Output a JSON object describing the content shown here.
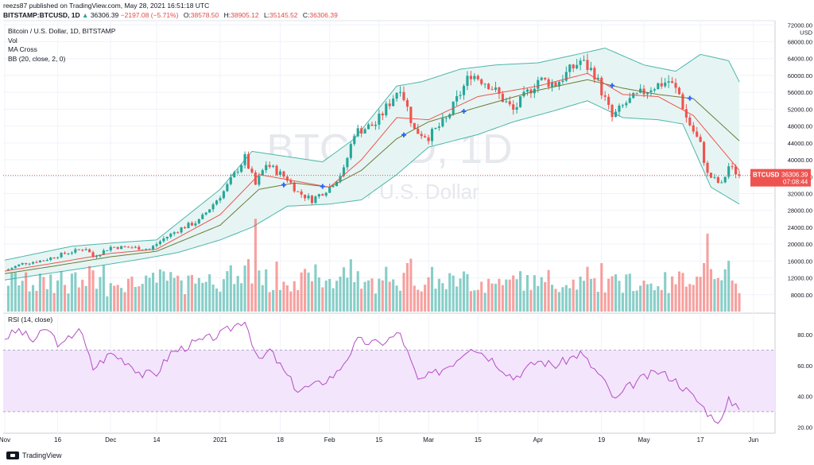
{
  "header": {
    "published": "reezs87 published on TradingView.com, May 28, 2021 16:51:18 UTC",
    "symbol": "BITSTAMP:BTCUSD, 1D",
    "last": "36306.39",
    "change": "−2197.08 (−5.71%)",
    "o_label": "O:",
    "o": "38578.50",
    "h_label": "H:",
    "h": "38905.12",
    "l_label": "L:",
    "l": "35145.52",
    "c_label": "C:",
    "c": "36306.39"
  },
  "legend": {
    "title": "Bitcoin / U.S. Dollar, 1D, BITSTAMP",
    "items": [
      "Vol",
      "MA Cross",
      "BB (20, close, 2, 0)"
    ],
    "rsi": "RSI (14, close)"
  },
  "watermark": {
    "symbol": "BTCUSD, 1D",
    "name": "Bitcoin / U.S. Dollar"
  },
  "price_tag": {
    "symbol": "BTCUSD",
    "price": "36306.39",
    "countdown": "07:08:44"
  },
  "footer": {
    "brand": "TradingView"
  },
  "colors": {
    "up": "#26a69a",
    "down": "#ef5350",
    "bb_fill": "#e6f5f3",
    "bb_line": "#4db6ac",
    "ma_fast": "#ef5350",
    "ma_slow": "#6d7a3a",
    "rsi_line": "#b44ec4",
    "rsi_band": "#f3e5fc",
    "cross": "#2962ff"
  },
  "chart_data": [
    {
      "type": "candlestick",
      "title": "Bitcoin / U.S. Dollar, 1D, BITSTAMP",
      "x_start": "2020-11-01",
      "x_end": "2021-05-28",
      "x_ticks": [
        {
          "label": "Nov",
          "date": "2020-11-01"
        },
        {
          "label": "16",
          "date": "2020-11-16"
        },
        {
          "label": "Dec",
          "date": "2020-12-01"
        },
        {
          "label": "14",
          "date": "2020-12-14"
        },
        {
          "label": "2021",
          "date": "2021-01-01"
        },
        {
          "label": "18",
          "date": "2021-01-18"
        },
        {
          "label": "Feb",
          "date": "2021-02-01"
        },
        {
          "label": "15",
          "date": "2021-02-15"
        },
        {
          "label": "Mar",
          "date": "2021-03-01"
        },
        {
          "label": "15",
          "date": "2021-03-15"
        },
        {
          "label": "Apr",
          "date": "2021-04-01"
        },
        {
          "label": "19",
          "date": "2021-04-19"
        },
        {
          "label": "May",
          "date": "2021-05-01"
        },
        {
          "label": "17",
          "date": "2021-05-17"
        },
        {
          "label": "Jun",
          "date": "2021-06-01"
        }
      ],
      "y_ticks": [
        8000,
        12000,
        16000,
        20000,
        24000,
        28000,
        32000,
        36000,
        40000,
        44000,
        48000,
        52000,
        56000,
        60000,
        64000,
        68000,
        72000
      ],
      "y_tick_labels": [
        "8000.00",
        "12000.00",
        "16000.00",
        "20000.00",
        "24000.00",
        "28000.00",
        "32000.00",
        "36000.00",
        "40000.00",
        "44000.00",
        "48000.00",
        "52000.00",
        "56000.00",
        "60000.00",
        "64000.00",
        "68000.00",
        "72000.00"
      ],
      "y_unit": "USD",
      "ylim": [
        4000,
        73000
      ],
      "last_price": 36306.39,
      "price_path": [
        [
          "2020-11-01",
          13700
        ],
        [
          "2020-11-06",
          15400
        ],
        [
          "2020-11-12",
          16200
        ],
        [
          "2020-11-18",
          17800
        ],
        [
          "2020-11-24",
          19000
        ],
        [
          "2020-11-26",
          17000
        ],
        [
          "2020-12-01",
          19300
        ],
        [
          "2020-12-07",
          19200
        ],
        [
          "2020-12-12",
          18800
        ],
        [
          "2020-12-16",
          21300
        ],
        [
          "2020-12-21",
          23800
        ],
        [
          "2020-12-26",
          25500
        ],
        [
          "2021-01-02",
          32500
        ],
        [
          "2021-01-08",
          40500
        ],
        [
          "2021-01-11",
          34000
        ],
        [
          "2021-01-14",
          39000
        ],
        [
          "2021-01-20",
          35500
        ],
        [
          "2021-01-23",
          32300
        ],
        [
          "2021-01-27",
          30500
        ],
        [
          "2021-02-01",
          33500
        ],
        [
          "2021-02-05",
          37500
        ],
        [
          "2021-02-08",
          46500
        ],
        [
          "2021-02-14",
          48500
        ],
        [
          "2021-02-21",
          57500
        ],
        [
          "2021-02-25",
          47000
        ],
        [
          "2021-03-01",
          45500
        ],
        [
          "2021-03-06",
          49500
        ],
        [
          "2021-03-13",
          60500
        ],
        [
          "2021-03-18",
          58000
        ],
        [
          "2021-03-25",
          51700
        ],
        [
          "2021-04-01",
          59000
        ],
        [
          "2021-04-06",
          58000
        ],
        [
          "2021-04-13",
          63500
        ],
        [
          "2021-04-17",
          60500
        ],
        [
          "2021-04-22",
          50000
        ],
        [
          "2021-04-26",
          53500
        ],
        [
          "2021-05-03",
          57200
        ],
        [
          "2021-05-08",
          58700
        ],
        [
          "2021-05-11",
          55500
        ],
        [
          "2021-05-13",
          50000
        ],
        [
          "2021-05-17",
          43500
        ],
        [
          "2021-05-19",
          36500
        ],
        [
          "2021-05-23",
          34000
        ],
        [
          "2021-05-25",
          38500
        ],
        [
          "2021-05-28",
          36306
        ]
      ],
      "bb_upper": [
        [
          "2020-11-01",
          16200
        ],
        [
          "2020-11-20",
          19500
        ],
        [
          "2020-12-05",
          20500
        ],
        [
          "2020-12-14",
          21000
        ],
        [
          "2021-01-01",
          33000
        ],
        [
          "2021-01-10",
          42000
        ],
        [
          "2021-01-18",
          41000
        ],
        [
          "2021-01-30",
          39500
        ],
        [
          "2021-02-08",
          45000
        ],
        [
          "2021-02-20",
          57500
        ],
        [
          "2021-02-27",
          58500
        ],
        [
          "2021-03-10",
          61500
        ],
        [
          "2021-03-20",
          62500
        ],
        [
          "2021-04-01",
          63000
        ],
        [
          "2021-04-12",
          65000
        ],
        [
          "2021-04-20",
          66500
        ],
        [
          "2021-05-01",
          62500
        ],
        [
          "2021-05-10",
          61000
        ],
        [
          "2021-05-17",
          65000
        ],
        [
          "2021-05-25",
          63500
        ],
        [
          "2021-05-28",
          58500
        ]
      ],
      "bb_lower": [
        [
          "2020-11-01",
          11500
        ],
        [
          "2020-11-25",
          14500
        ],
        [
          "2020-12-10",
          16500
        ],
        [
          "2020-12-20",
          18000
        ],
        [
          "2021-01-01",
          21000
        ],
        [
          "2021-01-10",
          24000
        ],
        [
          "2021-01-20",
          29000
        ],
        [
          "2021-02-01",
          29500
        ],
        [
          "2021-02-10",
          30500
        ],
        [
          "2021-02-20",
          36500
        ],
        [
          "2021-03-01",
          43000
        ],
        [
          "2021-03-15",
          46000
        ],
        [
          "2021-03-25",
          49000
        ],
        [
          "2021-04-05",
          51500
        ],
        [
          "2021-04-15",
          54000
        ],
        [
          "2021-04-25",
          50000
        ],
        [
          "2021-05-05",
          49500
        ],
        [
          "2021-05-12",
          48500
        ],
        [
          "2021-05-20",
          33500
        ],
        [
          "2021-05-28",
          29500
        ]
      ],
      "ma_fast": [
        [
          "2020-11-01",
          13600
        ],
        [
          "2020-11-15",
          15500
        ],
        [
          "2020-12-01",
          17800
        ],
        [
          "2020-12-14",
          18800
        ],
        [
          "2021-01-01",
          27000
        ],
        [
          "2021-01-12",
          36500
        ],
        [
          "2021-01-22",
          35000
        ],
        [
          "2021-02-01",
          33500
        ],
        [
          "2021-02-10",
          40000
        ],
        [
          "2021-02-20",
          50000
        ],
        [
          "2021-03-01",
          49500
        ],
        [
          "2021-03-15",
          55000
        ],
        [
          "2021-04-01",
          57500
        ],
        [
          "2021-04-15",
          60500
        ],
        [
          "2021-04-25",
          55500
        ],
        [
          "2021-05-05",
          55000
        ],
        [
          "2021-05-15",
          50500
        ],
        [
          "2021-05-28",
          37500
        ]
      ],
      "ma_slow": [
        [
          "2020-11-01",
          13000
        ],
        [
          "2020-11-15",
          14800
        ],
        [
          "2020-12-01",
          17000
        ],
        [
          "2020-12-14",
          18300
        ],
        [
          "2021-01-01",
          24500
        ],
        [
          "2021-01-12",
          33000
        ],
        [
          "2021-01-22",
          34500
        ],
        [
          "2021-02-01",
          33500
        ],
        [
          "2021-02-10",
          37500
        ],
        [
          "2021-02-20",
          45000
        ],
        [
          "2021-03-01",
          49000
        ],
        [
          "2021-03-15",
          52500
        ],
        [
          "2021-04-01",
          56500
        ],
        [
          "2021-04-15",
          59000
        ],
        [
          "2021-04-25",
          57000
        ],
        [
          "2021-05-05",
          55500
        ],
        [
          "2021-05-15",
          54500
        ],
        [
          "2021-05-28",
          44500
        ]
      ],
      "cross_markers": [
        "2021-01-19",
        "2021-01-30",
        "2021-02-22",
        "2021-03-11",
        "2021-04-22",
        "2021-05-14"
      ],
      "volume_spikes": [
        [
          "2021-01-11",
          22000
        ],
        [
          "2021-02-23",
          11500
        ],
        [
          "2021-05-19",
          18500
        ]
      ]
    },
    {
      "type": "line",
      "title": "RSI (14, close)",
      "y_ticks": [
        20,
        40,
        60,
        80
      ],
      "y_tick_labels": [
        "20.00",
        "40.00",
        "60.00",
        "80.00"
      ],
      "ylim": [
        16,
        94
      ],
      "band": [
        30,
        70
      ],
      "series": [
        {
          "values": [
            [
              "2020-11-01",
              78
            ],
            [
              "2020-11-05",
              83
            ],
            [
              "2020-11-09",
              76
            ],
            [
              "2020-11-13",
              84
            ],
            [
              "2020-11-17",
              72
            ],
            [
              "2020-11-22",
              85
            ],
            [
              "2020-11-26",
              58
            ],
            [
              "2020-12-01",
              68
            ],
            [
              "2020-12-06",
              62
            ],
            [
              "2020-12-10",
              54
            ],
            [
              "2020-12-14",
              55
            ],
            [
              "2020-12-18",
              68
            ],
            [
              "2020-12-24",
              74
            ],
            [
              "2021-01-01",
              80
            ],
            [
              "2021-01-08",
              90
            ],
            [
              "2021-01-12",
              62
            ],
            [
              "2021-01-15",
              70
            ],
            [
              "2021-01-20",
              53
            ],
            [
              "2021-01-23",
              44
            ],
            [
              "2021-01-29",
              48
            ],
            [
              "2021-02-03",
              55
            ],
            [
              "2021-02-09",
              76
            ],
            [
              "2021-02-15",
              74
            ],
            [
              "2021-02-21",
              81
            ],
            [
              "2021-02-26",
              50
            ],
            [
              "2021-03-03",
              55
            ],
            [
              "2021-03-08",
              62
            ],
            [
              "2021-03-13",
              73
            ],
            [
              "2021-03-19",
              64
            ],
            [
              "2021-03-25",
              52
            ],
            [
              "2021-04-01",
              63
            ],
            [
              "2021-04-06",
              60
            ],
            [
              "2021-04-13",
              68
            ],
            [
              "2021-04-19",
              52
            ],
            [
              "2021-04-23",
              37
            ],
            [
              "2021-04-26",
              45
            ],
            [
              "2021-04-30",
              51
            ],
            [
              "2021-05-05",
              56
            ],
            [
              "2021-05-09",
              52
            ],
            [
              "2021-05-13",
              44
            ],
            [
              "2021-05-17",
              35
            ],
            [
              "2021-05-20",
              27
            ],
            [
              "2021-05-23",
              24
            ],
            [
              "2021-05-25",
              37
            ],
            [
              "2021-05-28",
              34
            ]
          ]
        }
      ]
    }
  ]
}
